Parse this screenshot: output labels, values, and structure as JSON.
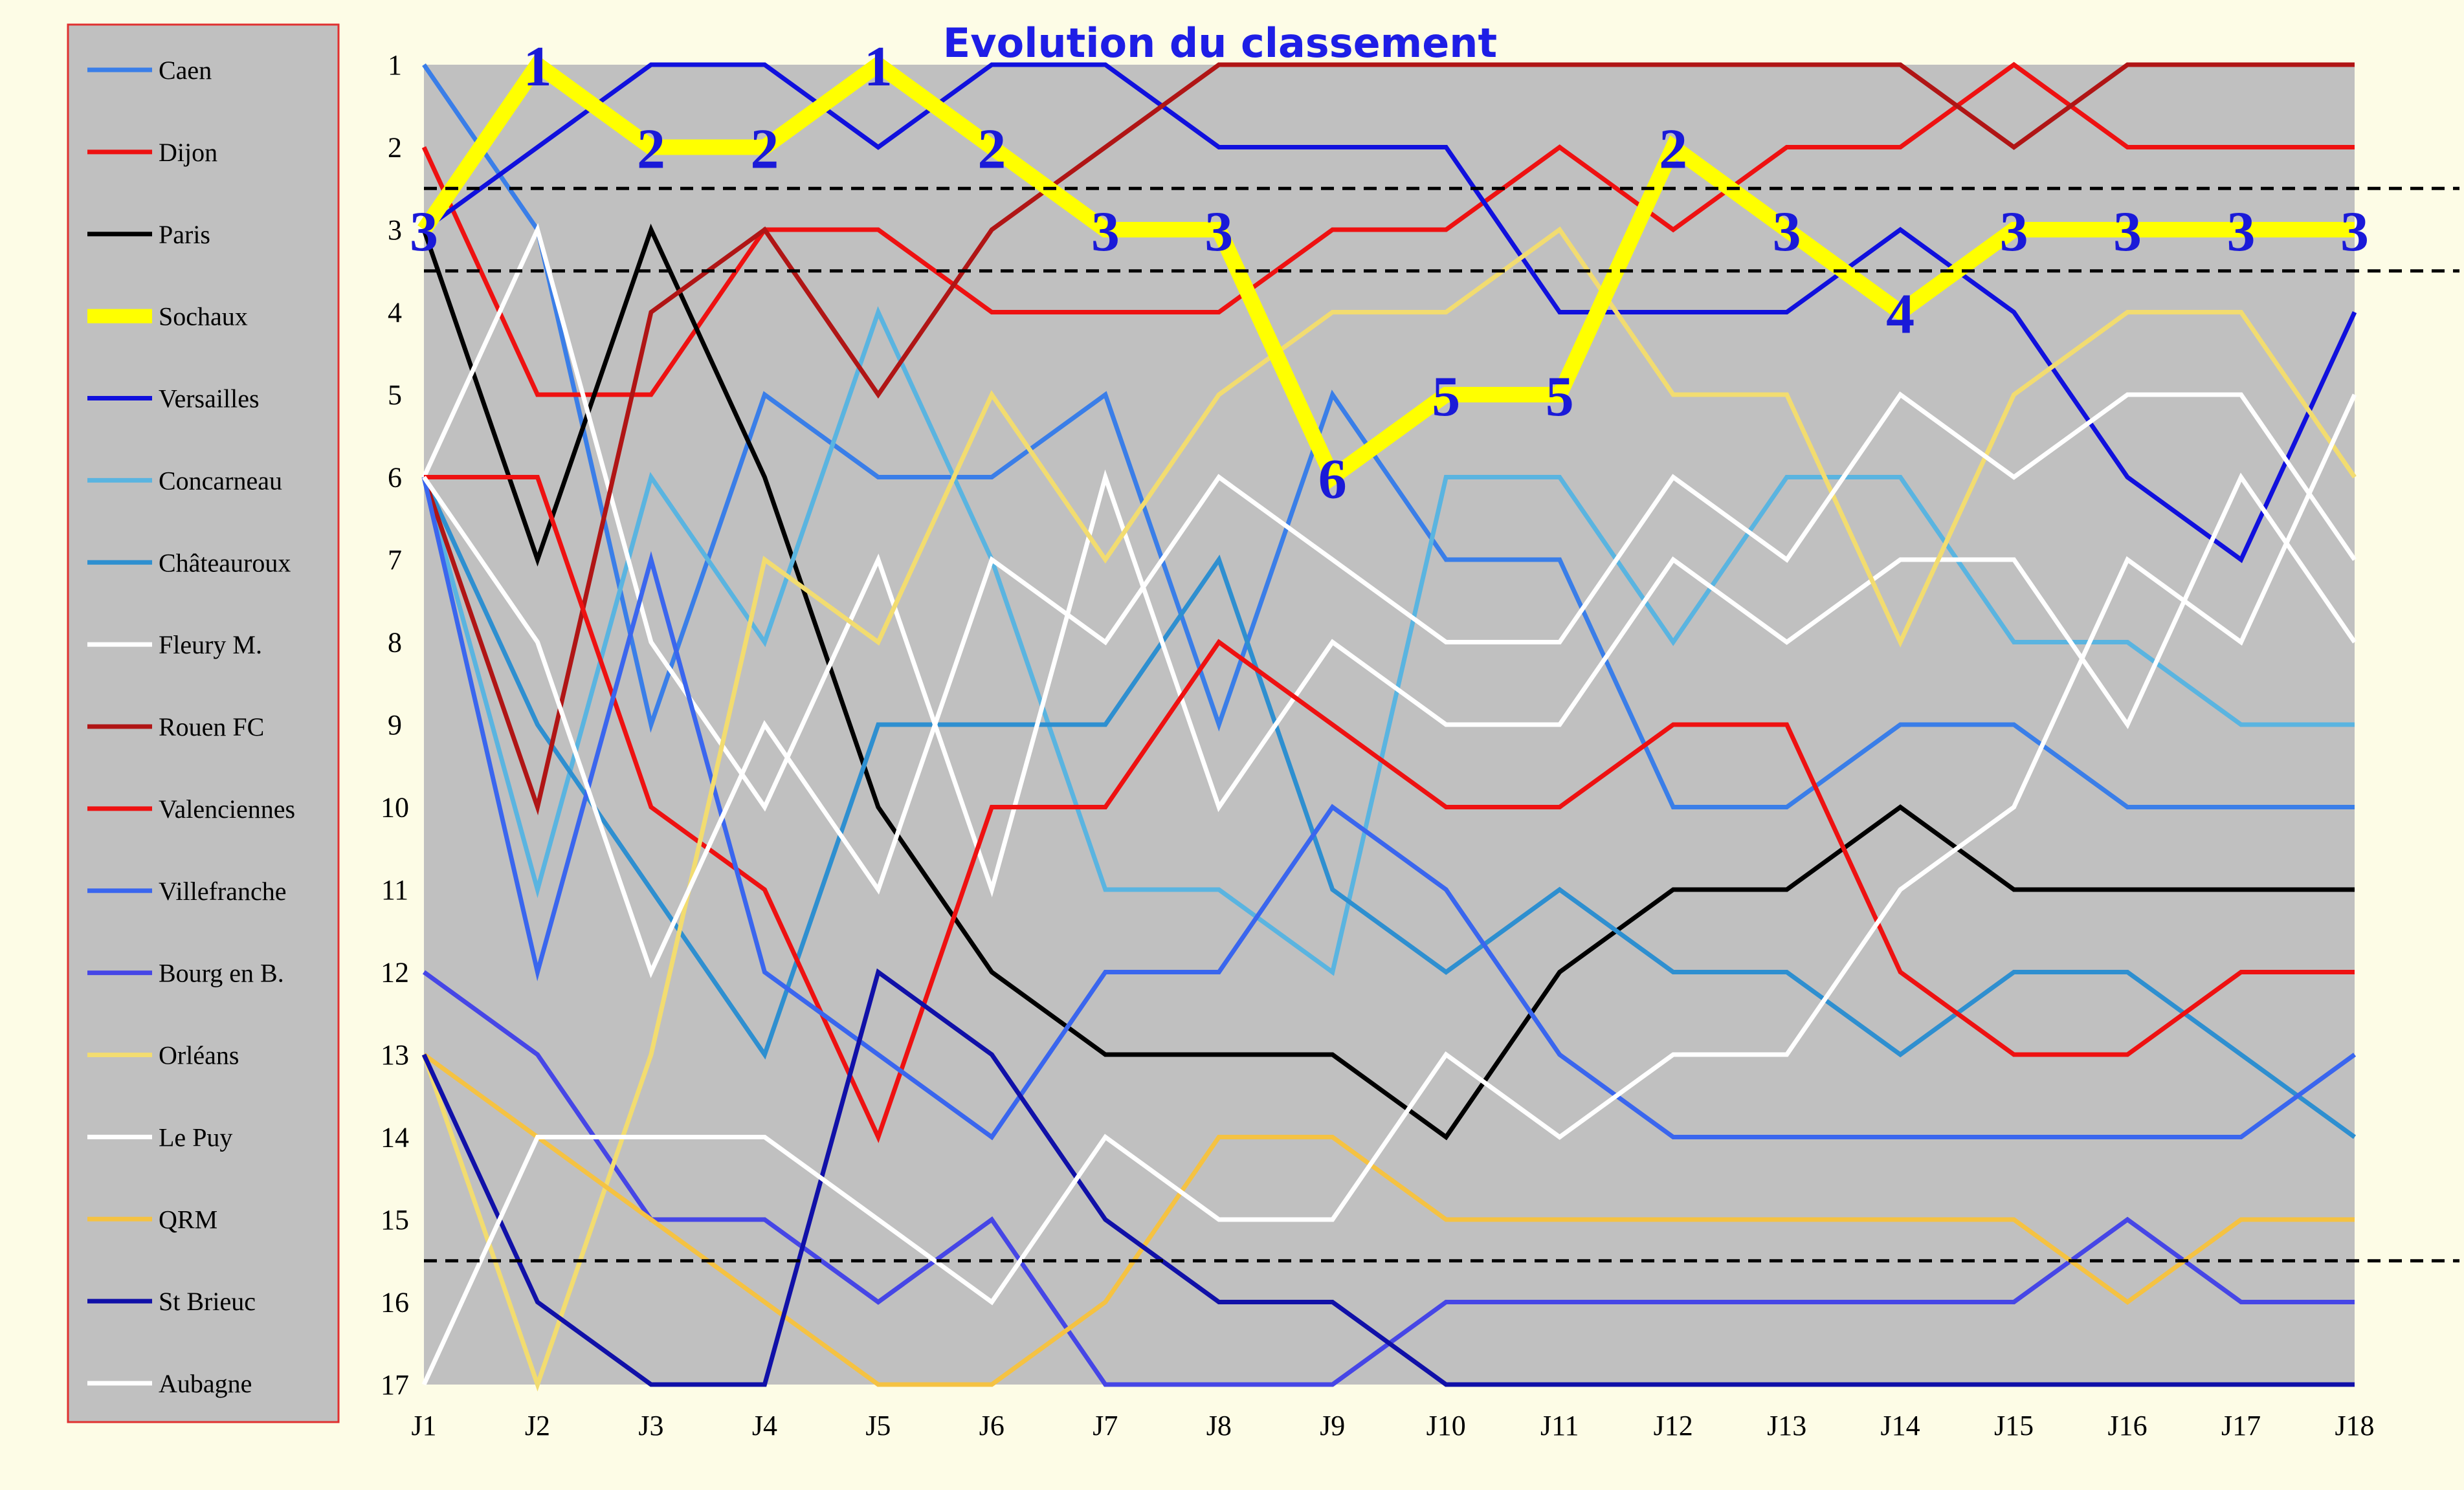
{
  "chart_data": {
    "type": "line",
    "title": "Evolution du classement",
    "xlabel": "",
    "ylabel": "",
    "x": [
      "J1",
      "J2",
      "J3",
      "J4",
      "J5",
      "J6",
      "J7",
      "J8",
      "J9",
      "J10",
      "J11",
      "J12",
      "J13",
      "J14",
      "J15",
      "J16",
      "J17",
      "J18"
    ],
    "y_ticks": [
      "1",
      "2",
      "3",
      "4",
      "5",
      "6",
      "7",
      "8",
      "9",
      "10",
      "11",
      "12",
      "13",
      "14",
      "15",
      "16",
      "17"
    ],
    "ylim": [
      1,
      17
    ],
    "y_inverted": true,
    "grid": false,
    "legend_position": "left",
    "plot_background": "#c0c0c0",
    "threshold_lines": [
      2.5,
      3.5,
      15.5
    ],
    "highlight_series": "Sochaux",
    "highlight_labels": [
      3,
      1,
      2,
      2,
      1,
      2,
      3,
      3,
      6,
      5,
      5,
      2,
      3,
      4,
      3,
      3,
      3,
      3
    ],
    "series": [
      {
        "name": "Caen",
        "color": "#3a7ee8",
        "values": [
          1,
          3,
          9,
          5,
          6,
          6,
          5,
          9,
          5,
          7,
          7,
          10,
          10,
          9,
          9,
          10,
          10,
          10
        ]
      },
      {
        "name": "Dijon",
        "color": "#ee1111",
        "values": [
          2,
          5,
          5,
          3,
          3,
          4,
          4,
          4,
          3,
          3,
          2,
          3,
          2,
          2,
          1,
          2,
          2,
          2
        ]
      },
      {
        "name": "Paris",
        "color": "#000000",
        "values": [
          3,
          7,
          3,
          6,
          10,
          12,
          13,
          13,
          13,
          14,
          12,
          11,
          11,
          10,
          11,
          11,
          11,
          11
        ]
      },
      {
        "name": "Sochaux",
        "color": "#ffff00",
        "values": [
          3,
          1,
          2,
          2,
          1,
          2,
          3,
          3,
          6,
          5,
          5,
          2,
          3,
          4,
          3,
          3,
          3,
          3
        ]
      },
      {
        "name": "Versailles",
        "color": "#1010dd",
        "values": [
          3,
          2,
          1,
          1,
          2,
          1,
          1,
          2,
          2,
          2,
          4,
          4,
          4,
          3,
          4,
          6,
          7,
          4
        ]
      },
      {
        "name": "Concarneau",
        "color": "#5ab4e0",
        "values": [
          6,
          11,
          6,
          8,
          4,
          7,
          11,
          11,
          12,
          6,
          6,
          8,
          6,
          6,
          8,
          8,
          9,
          9
        ]
      },
      {
        "name": "Châteauroux",
        "color": "#2e8fd0",
        "values": [
          6,
          9,
          11,
          13,
          9,
          9,
          9,
          7,
          11,
          12,
          11,
          12,
          12,
          13,
          12,
          12,
          13,
          14
        ]
      },
      {
        "name": "Fleury M.",
        "color": "#ffffff",
        "values": [
          6,
          3,
          8,
          10,
          7,
          11,
          6,
          10,
          8,
          9,
          9,
          7,
          8,
          7,
          7,
          9,
          6,
          8
        ]
      },
      {
        "name": "Rouen FC",
        "color": "#b01515",
        "values": [
          6,
          10,
          4,
          3,
          5,
          3,
          2,
          1,
          1,
          1,
          1,
          1,
          1,
          1,
          2,
          1,
          1,
          1
        ]
      },
      {
        "name": "Valenciennes",
        "color": "#ee1111",
        "values": [
          6,
          6,
          10,
          11,
          14,
          10,
          10,
          8,
          9,
          10,
          10,
          9,
          9,
          12,
          13,
          13,
          12,
          12
        ]
      },
      {
        "name": "Villefranche",
        "color": "#3a66ee",
        "values": [
          6,
          12,
          7,
          12,
          13,
          14,
          12,
          12,
          10,
          11,
          13,
          14,
          14,
          14,
          14,
          14,
          14,
          13
        ]
      },
      {
        "name": "Bourg en B.",
        "color": "#4646e6",
        "values": [
          12,
          13,
          15,
          15,
          16,
          15,
          17,
          17,
          17,
          16,
          16,
          16,
          16,
          16,
          16,
          15,
          16,
          16
        ]
      },
      {
        "name": "Orléans",
        "color": "#f2dc70",
        "values": [
          13,
          17,
          13,
          7,
          8,
          5,
          7,
          5,
          4,
          4,
          3,
          5,
          5,
          8,
          5,
          4,
          4,
          6
        ]
      },
      {
        "name": "Le Puy",
        "color": "#ffffff",
        "values": [
          6,
          8,
          12,
          9,
          11,
          7,
          8,
          6,
          7,
          8,
          8,
          6,
          7,
          5,
          6,
          5,
          5,
          7
        ]
      },
      {
        "name": "QRM",
        "color": "#f5c242",
        "values": [
          13,
          14,
          15,
          16,
          17,
          17,
          16,
          14,
          14,
          15,
          15,
          15,
          15,
          15,
          15,
          16,
          15,
          15
        ]
      },
      {
        "name": "St Brieuc",
        "color": "#1010a8",
        "values": [
          13,
          16,
          17,
          17,
          12,
          13,
          15,
          16,
          16,
          17,
          17,
          17,
          17,
          17,
          17,
          17,
          17,
          17
        ]
      },
      {
        "name": "Aubagne",
        "color": "#ffffff",
        "values": [
          17,
          14,
          14,
          14,
          15,
          16,
          14,
          15,
          15,
          13,
          14,
          13,
          13,
          11,
          10,
          7,
          8,
          5
        ]
      }
    ]
  }
}
